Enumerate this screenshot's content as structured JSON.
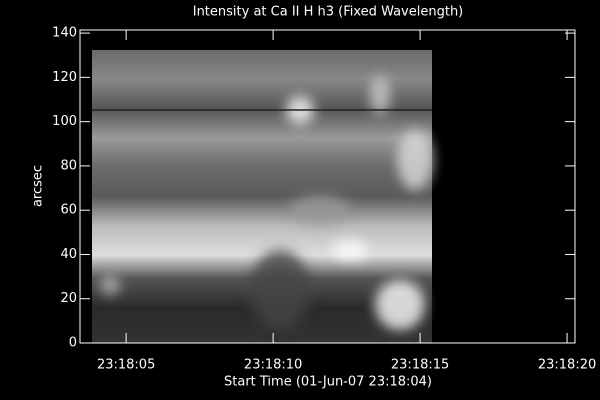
{
  "chart_data": {
    "type": "image",
    "title": "Intensity at Ca II H h3 (Fixed Wavelength)",
    "xlabel": "Start Time (01-Jun-07 23:18:04)",
    "ylabel": "arcsec",
    "xlim": [
      3.43,
      20.27
    ],
    "xticks": [
      {
        "value": 5,
        "label": "23:18:05"
      },
      {
        "value": 10,
        "label": "23:18:10"
      },
      {
        "value": 15,
        "label": "23:18:15"
      },
      {
        "value": 20,
        "label": "23:18:20"
      }
    ],
    "ylim": [
      0,
      141.4
    ],
    "yticks": [
      0,
      20,
      40,
      60,
      80,
      100,
      120,
      140
    ],
    "grid": false,
    "colormap": "gray"
  }
}
